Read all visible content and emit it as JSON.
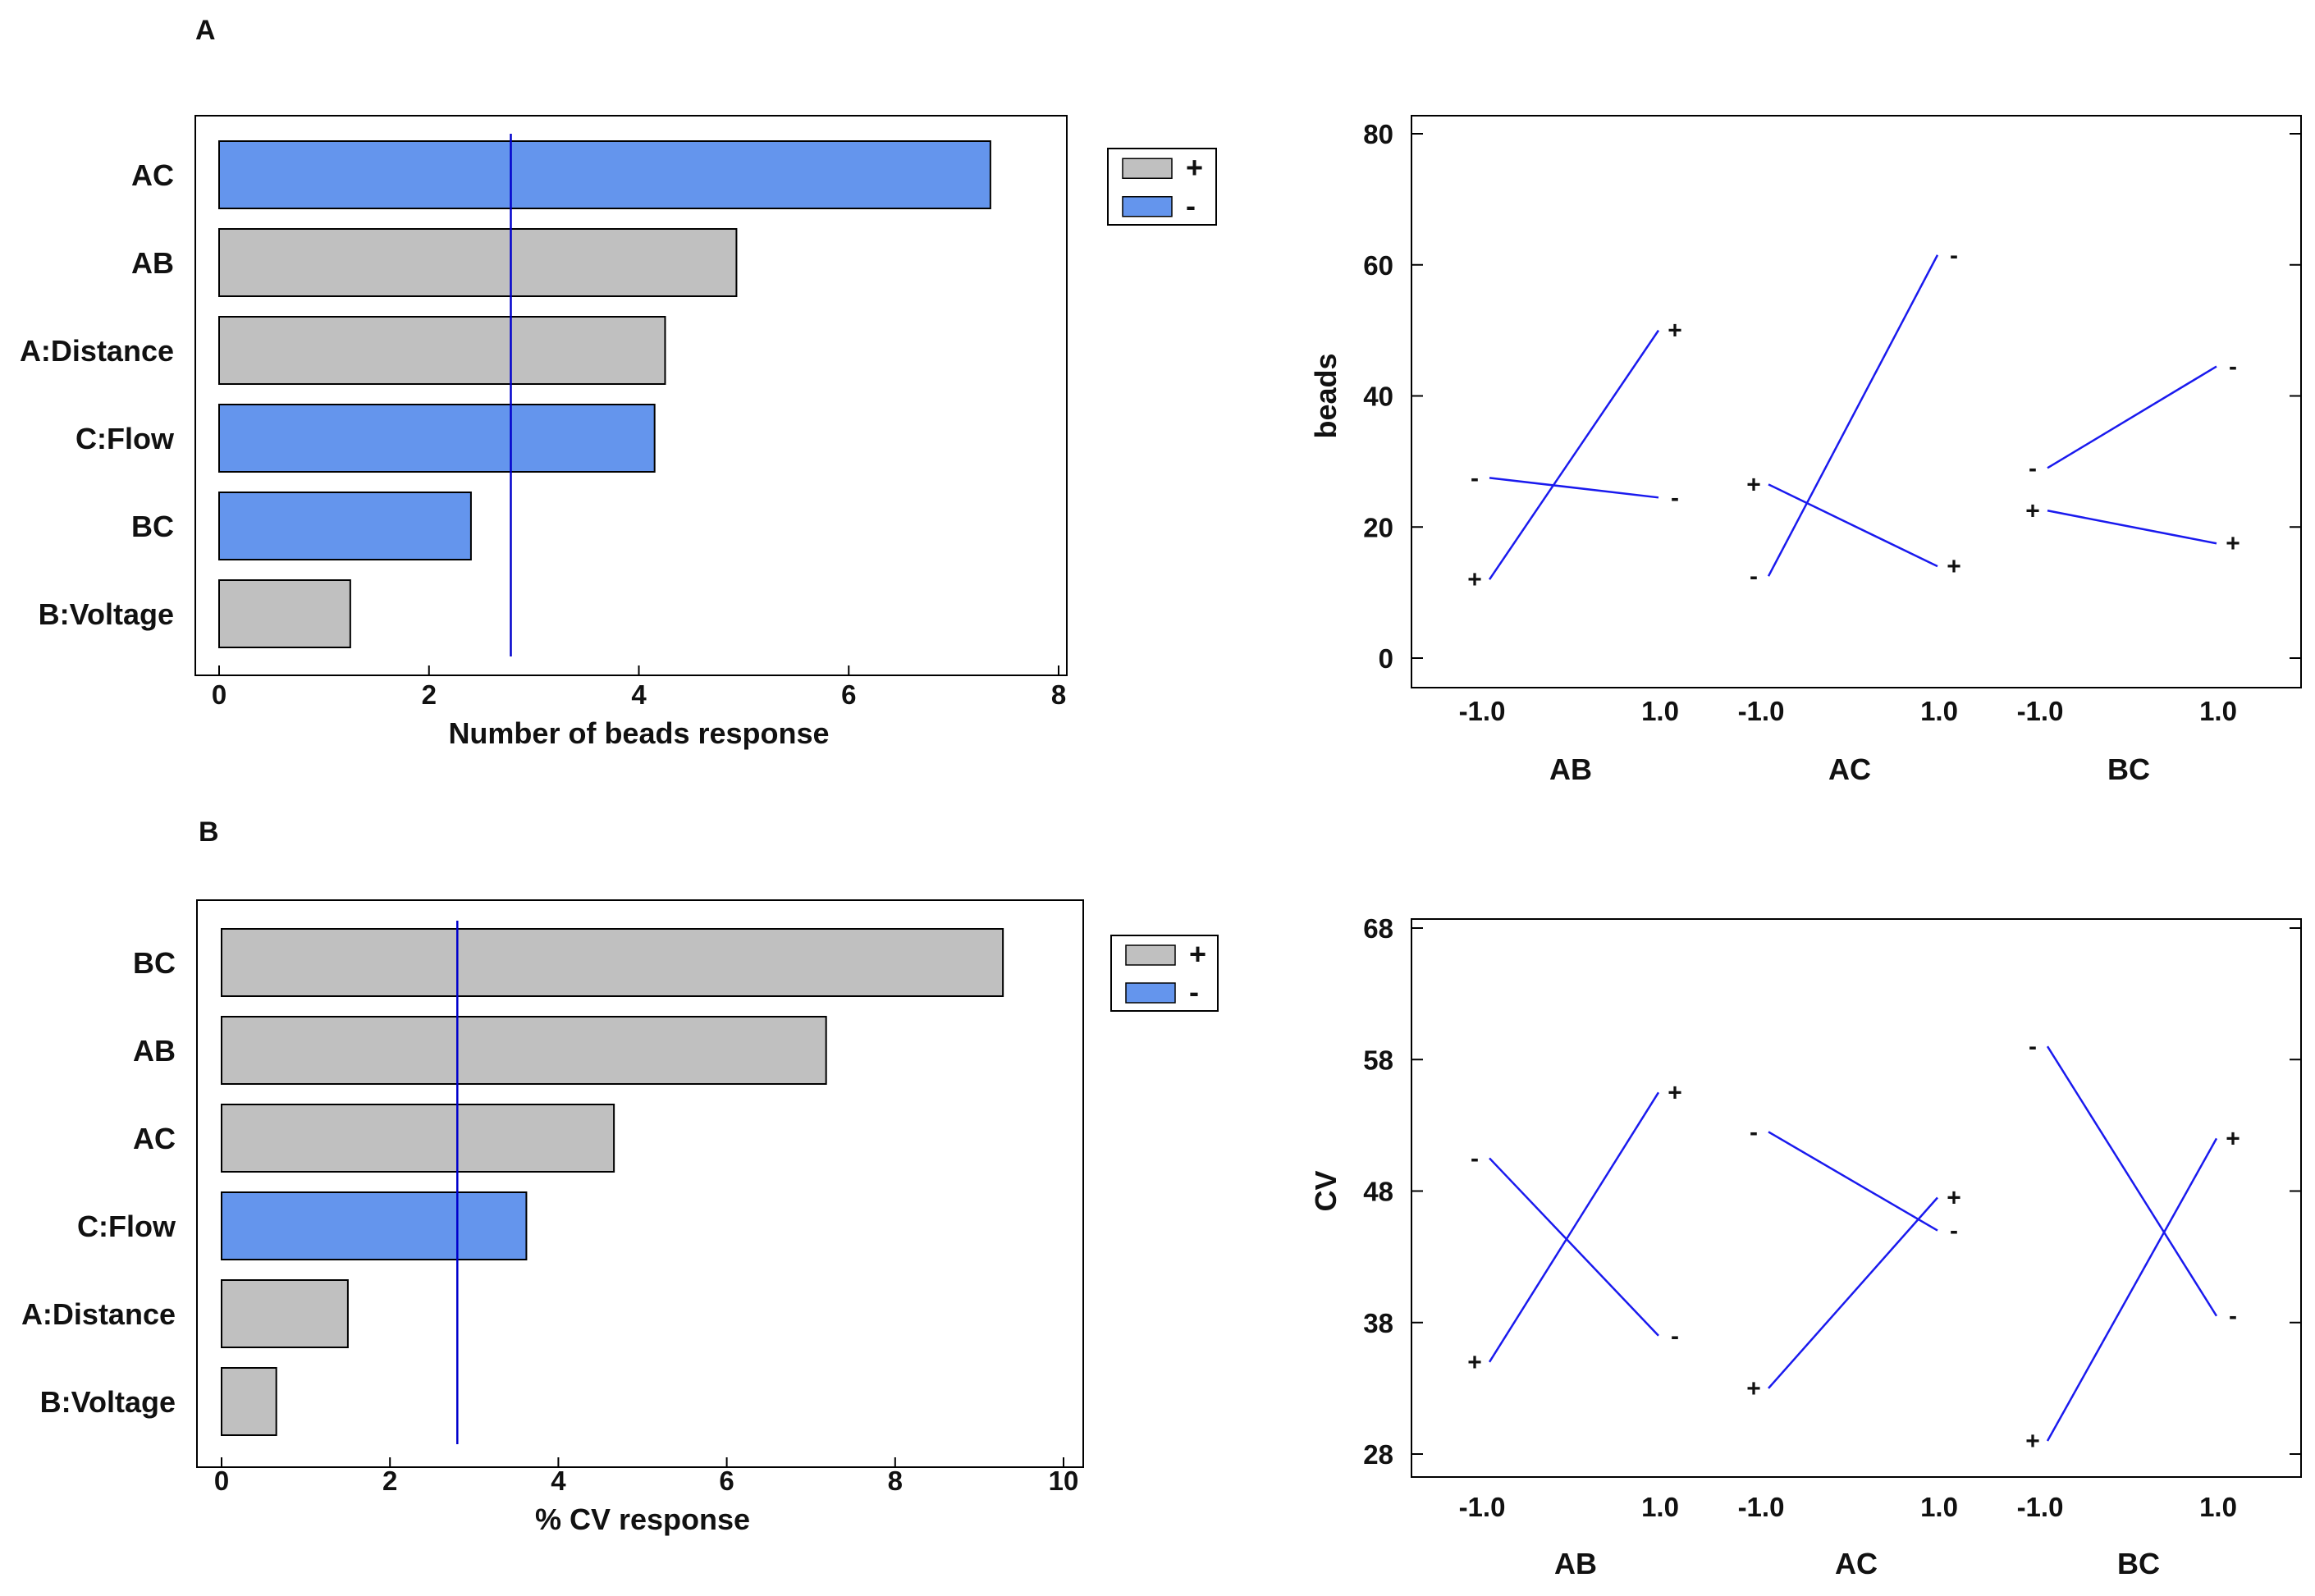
{
  "colors": {
    "positive": "#c0c0c0",
    "negative": "#6495ed",
    "reference_line": "#0000cc",
    "interaction_line": "#1a1aee",
    "axis": "#000000"
  },
  "chart_data": [
    {
      "type": "bar",
      "orientation": "horizontal",
      "panel_label": "A",
      "categories": [
        "AC",
        "AB",
        "A:Distance",
        "C:Flow",
        "BC",
        "B:Voltage"
      ],
      "values": [
        7.35,
        4.93,
        4.25,
        4.15,
        2.4,
        1.25
      ],
      "signs": [
        "-",
        "+",
        "+",
        "-",
        "-",
        "+"
      ],
      "xlabel": "Number of beads response",
      "xlim": [
        0,
        8
      ],
      "xticks": [
        0,
        2,
        4,
        6,
        8
      ],
      "reference_line": 2.78,
      "legend": [
        {
          "label": "+"
        },
        {
          "label": "-"
        }
      ]
    },
    {
      "type": "line",
      "chart_kind": "interaction",
      "ylabel": "beads",
      "ylim": [
        0,
        80
      ],
      "yticks": [
        0,
        20,
        40,
        60,
        80
      ],
      "groups": [
        {
          "name": "AB",
          "x_labels": [
            "-1.0",
            "1.0"
          ],
          "lines": [
            {
              "level": "+",
              "y": [
                12,
                50
              ]
            },
            {
              "level": "-",
              "y": [
                27.5,
                24.5
              ]
            }
          ]
        },
        {
          "name": "AC",
          "x_labels": [
            "-1.0",
            "1.0"
          ],
          "lines": [
            {
              "level": "-",
              "y": [
                12.5,
                61.5
              ]
            },
            {
              "level": "+",
              "y": [
                26.5,
                14
              ]
            }
          ]
        },
        {
          "name": "BC",
          "x_labels": [
            "-1.0",
            "1.0"
          ],
          "lines": [
            {
              "level": "-",
              "y": [
                29,
                44.5
              ]
            },
            {
              "level": "+",
              "y": [
                22.5,
                17.5
              ]
            }
          ]
        }
      ]
    },
    {
      "type": "bar",
      "orientation": "horizontal",
      "panel_label": "B",
      "categories": [
        "BC",
        "AB",
        "AC",
        "C:Flow",
        "A:Distance",
        "B:Voltage"
      ],
      "values": [
        9.28,
        7.18,
        4.66,
        3.62,
        1.5,
        0.65
      ],
      "signs": [
        "+",
        "+",
        "+",
        "-",
        "+",
        "+"
      ],
      "xlabel": "% CV response",
      "xlim": [
        0,
        10
      ],
      "xticks": [
        0,
        2,
        4,
        6,
        8,
        10
      ],
      "reference_line": 2.8,
      "legend": [
        {
          "label": "+"
        },
        {
          "label": "-"
        }
      ]
    },
    {
      "type": "line",
      "chart_kind": "interaction",
      "ylabel": "CV",
      "ylim": [
        28,
        68
      ],
      "yticks": [
        28,
        38,
        48,
        58,
        68
      ],
      "groups": [
        {
          "name": "AB",
          "x_labels": [
            "-1.0",
            "1.0"
          ],
          "lines": [
            {
              "level": "+",
              "y": [
                35,
                55.5
              ]
            },
            {
              "level": "-",
              "y": [
                50.5,
                37
              ]
            }
          ]
        },
        {
          "name": "AC",
          "x_labels": [
            "-1.0",
            "1.0"
          ],
          "lines": [
            {
              "level": "-",
              "y": [
                52.5,
                45
              ]
            },
            {
              "level": "+",
              "y": [
                33,
                47.5
              ]
            }
          ]
        },
        {
          "name": "BC",
          "x_labels": [
            "-1.0",
            "1.0"
          ],
          "lines": [
            {
              "level": "-",
              "y": [
                59,
                38.5
              ]
            },
            {
              "level": "+",
              "y": [
                29,
                52
              ]
            }
          ]
        }
      ]
    }
  ]
}
